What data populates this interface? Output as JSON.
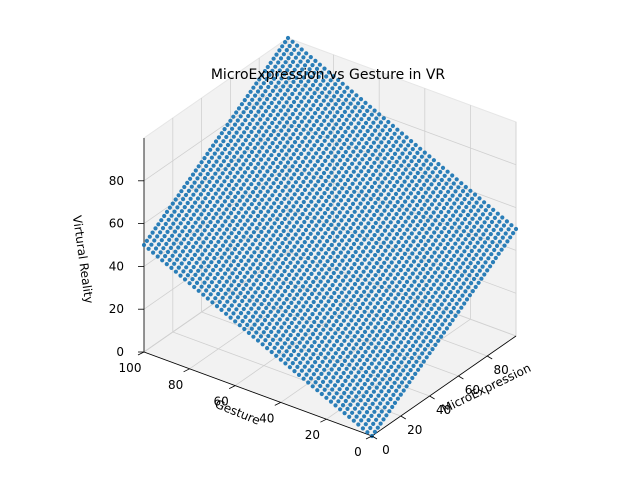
{
  "chart_data": {
    "type": "scatter3d",
    "title": "MicroExpression vs Gesture in VR",
    "xlabel": "MicroExpression",
    "ylabel": "Gesture",
    "zlabel": "Virtural Reality",
    "xlim": [
      0,
      100
    ],
    "ylim": [
      0,
      100
    ],
    "zlim": [
      0,
      100
    ],
    "xticks": [
      "0",
      "20",
      "40",
      "60",
      "80"
    ],
    "yticks": [
      "0",
      "20",
      "40",
      "60",
      "80",
      "100"
    ],
    "zticks": [
      "0",
      "20",
      "40",
      "60",
      "80"
    ],
    "surface": "z = (x + y) / 2",
    "grid_points": 51,
    "color": "#1f77b4",
    "pane_color": "#f2f2f2",
    "grid": true
  }
}
